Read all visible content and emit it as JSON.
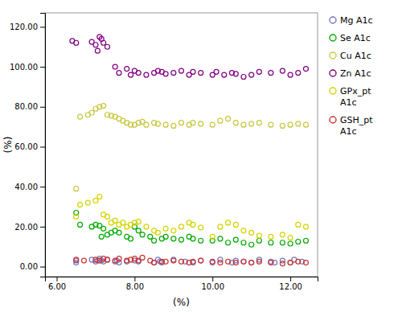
{
  "chart_data": {
    "type": "scatter",
    "x_label": "(%)",
    "y_label": "(%)",
    "xlim": [
      5.7,
      12.7
    ],
    "ylim": [
      -5,
      127
    ],
    "xticks": [
      {
        "value": 6,
        "label": "6.00"
      },
      {
        "value": 8,
        "label": "8.00"
      },
      {
        "value": 10,
        "label": "10.00"
      },
      {
        "value": 12,
        "label": "12.00"
      }
    ],
    "yticks": [
      {
        "value": 0,
        "label": "0.00"
      },
      {
        "value": 20,
        "label": "20.00"
      },
      {
        "value": 40,
        "label": "40.00"
      },
      {
        "value": 60,
        "label": "60.00"
      },
      {
        "value": 80,
        "label": "80.00"
      },
      {
        "value": 100,
        "label": "100.00"
      },
      {
        "value": 120,
        "label": "120.00"
      }
    ],
    "grid": false,
    "legend": "right",
    "marker": "circle",
    "series": [
      {
        "name": "Mg A1c",
        "color": "#7777bb",
        "x": [
          6.5,
          6.5,
          6.9,
          7.0,
          7.05,
          7.1,
          7.15,
          7.2,
          7.3,
          7.5,
          7.55,
          7.6,
          7.8,
          8.0,
          8.1,
          8.5,
          8.6,
          8.65,
          8.7,
          9.0,
          9.3,
          9.5,
          9.7,
          10.0,
          10.2,
          10.5,
          10.6,
          10.8,
          11.0,
          11.2,
          11.5,
          11.6,
          11.8,
          12.0,
          12.1,
          12.3
        ],
        "values": [
          2.0,
          3.0,
          3.5,
          2.5,
          3.0,
          4.0,
          3.0,
          2.5,
          3.5,
          2.5,
          3.0,
          2.0,
          2.5,
          3.0,
          2.5,
          2.0,
          3.5,
          2.5,
          2.0,
          3.5,
          2.5,
          2.0,
          3.0,
          2.0,
          3.5,
          2.0,
          3.0,
          2.5,
          2.0,
          3.5,
          2.5,
          2.0,
          3.0,
          2.0,
          3.5,
          2.5
        ]
      },
      {
        "name": "Se A1c",
        "color": "#00aa00",
        "x": [
          6.5,
          6.6,
          6.9,
          7.0,
          7.1,
          7.15,
          7.2,
          7.3,
          7.4,
          7.5,
          7.6,
          7.8,
          7.9,
          8.0,
          8.1,
          8.2,
          8.4,
          8.5,
          8.7,
          8.8,
          9.0,
          9.2,
          9.4,
          9.5,
          9.7,
          10.0,
          10.2,
          10.4,
          10.6,
          10.8,
          11.0,
          11.2,
          11.5,
          11.8,
          12.0,
          12.2,
          12.4
        ],
        "values": [
          27.0,
          21.0,
          20.0,
          21.0,
          20.5,
          15.0,
          19.0,
          16.0,
          17.0,
          18.0,
          17.0,
          15.0,
          14.0,
          20.0,
          18.0,
          16.0,
          15.0,
          13.0,
          14.0,
          15.0,
          14.0,
          13.5,
          15.0,
          14.0,
          13.0,
          13.0,
          14.0,
          12.0,
          13.5,
          12.0,
          11.0,
          13.0,
          12.0,
          12.0,
          11.5,
          12.5,
          13.0
        ]
      },
      {
        "name": "Cu A1c",
        "color": "#c8c840",
        "x": [
          6.5,
          6.6,
          6.8,
          6.9,
          7.0,
          7.1,
          7.2,
          7.3,
          7.4,
          7.5,
          7.6,
          7.7,
          7.8,
          7.9,
          8.0,
          8.1,
          8.2,
          8.3,
          8.5,
          8.6,
          8.8,
          9.0,
          9.2,
          9.4,
          9.5,
          9.7,
          10.0,
          10.2,
          10.4,
          10.6,
          10.8,
          11.0,
          11.2,
          11.5,
          11.8,
          12.0,
          12.2,
          12.4
        ],
        "values": [
          39.0,
          75.0,
          76.0,
          77.0,
          79.0,
          80.0,
          80.5,
          76.0,
          75.5,
          75.0,
          74.0,
          73.0,
          72.0,
          71.0,
          71.0,
          72.0,
          72.5,
          71.0,
          72.0,
          71.5,
          71.0,
          70.5,
          72.0,
          71.0,
          72.0,
          71.5,
          71.0,
          73.0,
          74.0,
          72.0,
          71.0,
          71.5,
          72.0,
          71.0,
          70.5,
          71.0,
          71.5,
          71.0
        ]
      },
      {
        "name": "Zn A1c",
        "color": "#800080",
        "x": [
          6.4,
          6.5,
          6.9,
          7.0,
          7.05,
          7.1,
          7.15,
          7.2,
          7.3,
          7.5,
          7.6,
          7.8,
          7.9,
          8.0,
          8.1,
          8.3,
          8.5,
          8.6,
          8.7,
          8.8,
          9.0,
          9.2,
          9.4,
          9.5,
          9.7,
          10.0,
          10.1,
          10.3,
          10.5,
          10.6,
          10.8,
          11.0,
          11.2,
          11.5,
          11.8,
          12.0,
          12.2,
          12.4
        ],
        "values": [
          113.0,
          112.0,
          112.5,
          111.0,
          108.0,
          115.0,
          114.0,
          112.0,
          110.0,
          100.0,
          97.0,
          99.0,
          96.0,
          98.0,
          97.0,
          96.0,
          97.0,
          98.0,
          97.5,
          96.5,
          97.0,
          98.0,
          96.0,
          97.5,
          97.0,
          96.0,
          97.5,
          96.0,
          97.0,
          96.5,
          95.0,
          96.0,
          97.5,
          97.0,
          98.0,
          96.0,
          97.0,
          99.0
        ]
      },
      {
        "name": "GPx_pt\nA1c",
        "color": "#d4d400",
        "x": [
          6.5,
          6.6,
          6.8,
          7.0,
          7.1,
          7.2,
          7.3,
          7.4,
          7.5,
          7.6,
          7.7,
          7.8,
          7.9,
          8.0,
          8.1,
          8.3,
          8.5,
          8.6,
          8.8,
          9.0,
          9.2,
          9.4,
          9.5,
          9.7,
          10.0,
          10.2,
          10.4,
          10.6,
          10.8,
          11.0,
          11.2,
          11.5,
          11.8,
          12.0,
          12.2,
          12.4
        ],
        "values": [
          25.0,
          31.0,
          32.0,
          33.0,
          35.0,
          26.0,
          25.0,
          22.0,
          23.0,
          21.0,
          22.0,
          20.0,
          21.0,
          22.0,
          22.5,
          20.0,
          18.0,
          17.0,
          19.0,
          18.0,
          20.0,
          22.0,
          21.0,
          19.5,
          15.0,
          20.0,
          22.0,
          21.0,
          18.0,
          17.0,
          15.5,
          15.0,
          16.0,
          14.5,
          21.0,
          20.0
        ]
      },
      {
        "name": "GSH_pt\nA1c",
        "color": "#cc3333",
        "x": [
          6.5,
          6.7,
          7.0,
          7.1,
          7.2,
          7.3,
          7.5,
          7.6,
          7.8,
          7.9,
          8.0,
          8.1,
          8.2,
          8.4,
          8.5,
          8.7,
          8.8,
          9.0,
          9.2,
          9.4,
          9.5,
          9.7,
          10.0,
          10.2,
          10.4,
          10.6,
          10.8,
          11.0,
          11.2,
          11.5,
          11.8,
          12.0,
          12.2,
          12.4
        ],
        "values": [
          3.5,
          3.0,
          3.5,
          3.0,
          4.0,
          3.5,
          3.0,
          4.0,
          3.0,
          3.5,
          4.0,
          3.0,
          4.5,
          3.0,
          2.0,
          2.5,
          2.5,
          3.0,
          2.5,
          2.0,
          2.5,
          3.0,
          2.5,
          2.0,
          2.5,
          2.0,
          2.5,
          2.0,
          2.5,
          2.0,
          1.5,
          2.0,
          2.5,
          2.0
        ]
      }
    ]
  }
}
